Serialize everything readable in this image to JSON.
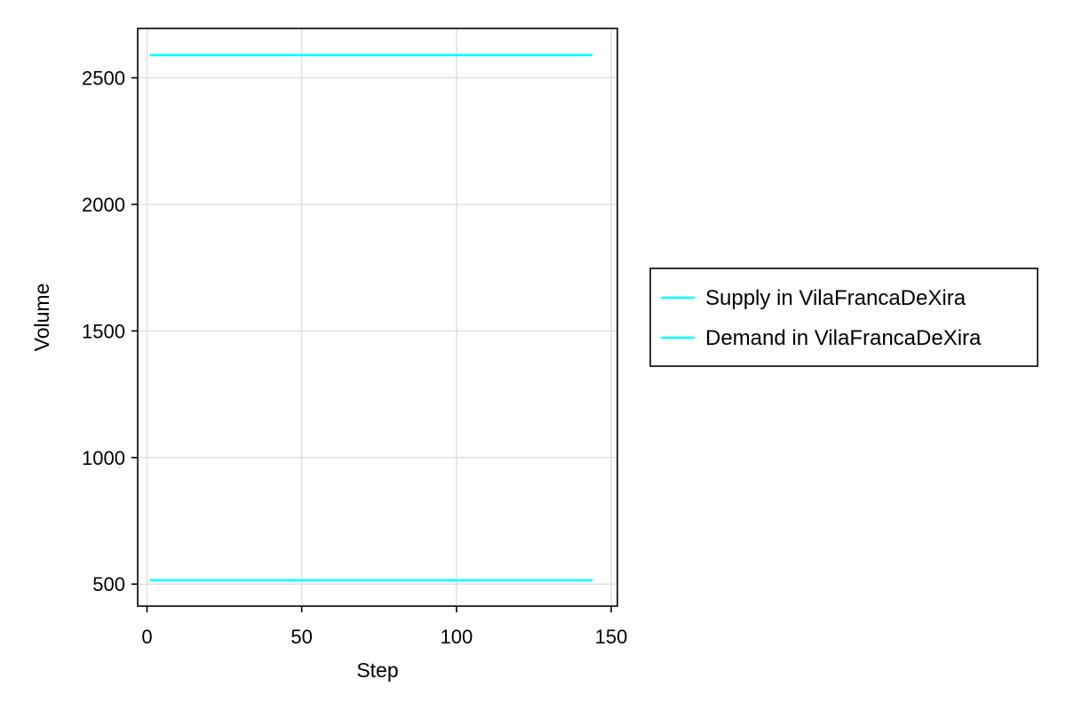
{
  "chart_data": {
    "type": "line",
    "xlabel": "Step",
    "ylabel": "Volume",
    "xlim": [
      -3,
      152
    ],
    "ylim": [
      413,
      2695
    ],
    "xticks": [
      0,
      50,
      100,
      150
    ],
    "yticks": [
      500,
      1000,
      1500,
      2000,
      2500
    ],
    "grid": true,
    "legend_position": "outside-right",
    "series": [
      {
        "name": "Supply in VilaFrancaDeXira",
        "color": "#00ffff",
        "x": [
          1,
          144
        ],
        "y": [
          2590,
          2590
        ]
      },
      {
        "name": "Demand in VilaFrancaDeXira",
        "color": "#00ffff",
        "x": [
          1,
          144
        ],
        "y": [
          515,
          515
        ]
      }
    ]
  }
}
